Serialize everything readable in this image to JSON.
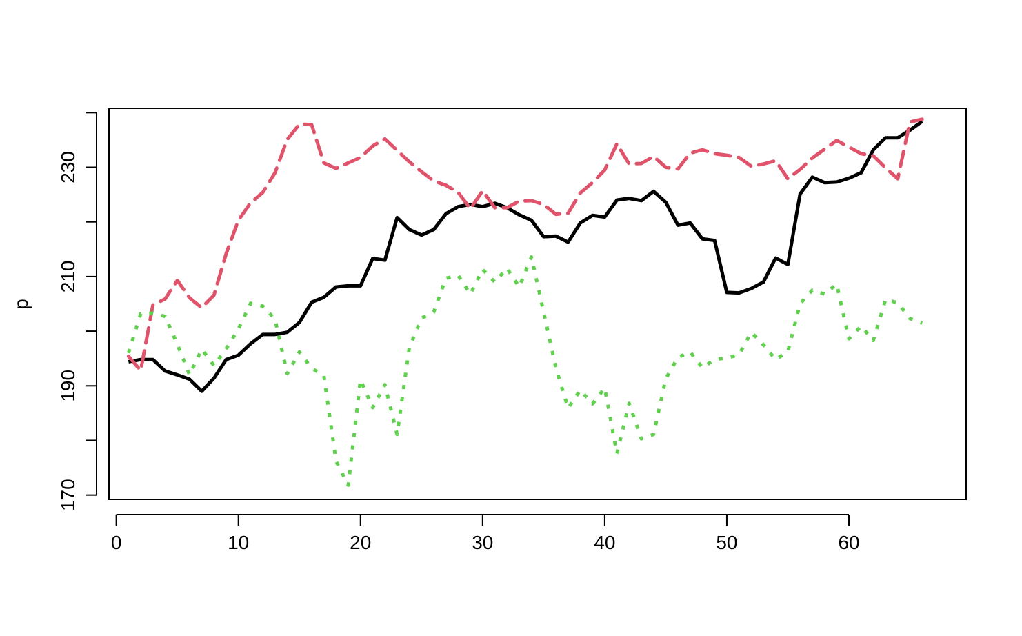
{
  "chart_data": {
    "type": "line",
    "title": "",
    "xlabel": "",
    "ylabel": "p",
    "xlim": [
      -0.6,
      69.6
    ],
    "ylim": [
      169.2,
      240.8
    ],
    "x_ticks": [
      0,
      10,
      20,
      30,
      40,
      50,
      60
    ],
    "y_ticks": [
      170,
      180,
      190,
      200,
      210,
      220,
      230,
      240
    ],
    "y_tick_labels": [
      "170",
      "",
      "190",
      "",
      "210",
      "",
      "230",
      ""
    ],
    "grid": false,
    "legend": "none",
    "x": [
      1,
      2,
      3,
      4,
      5,
      6,
      7,
      8,
      9,
      10,
      11,
      12,
      13,
      14,
      15,
      16,
      17,
      18,
      19,
      20,
      21,
      22,
      23,
      24,
      25,
      26,
      27,
      28,
      29,
      30,
      31,
      32,
      33,
      34,
      35,
      36,
      37,
      38,
      39,
      40,
      41,
      42,
      43,
      44,
      45,
      46,
      47,
      48,
      49,
      50,
      51,
      52,
      53,
      54,
      55,
      56,
      57,
      58,
      59,
      60,
      61,
      62,
      63,
      64,
      65,
      66
    ],
    "series": [
      {
        "color": "#000000",
        "linestyle": "solid",
        "values": [
          194.4,
          194.8,
          194.8,
          192.7,
          192.0,
          191.2,
          189.0,
          191.4,
          194.8,
          195.6,
          197.7,
          199.4,
          199.4,
          199.8,
          201.6,
          205.3,
          206.2,
          208.1,
          208.3,
          208.3,
          213.3,
          213.0,
          220.8,
          218.6,
          217.6,
          218.6,
          221.5,
          222.8,
          223.2,
          222.8,
          223.4,
          222.6,
          221.3,
          220.3,
          217.3,
          217.4,
          216.3,
          219.8,
          221.2,
          220.9,
          224.0,
          224.3,
          223.9,
          225.6,
          223.6,
          219.4,
          219.8,
          216.9,
          216.6,
          207.1,
          207.0,
          207.8,
          209.0,
          213.4,
          212.2,
          225.1,
          228.2,
          227.2,
          227.3,
          228.0,
          229.0,
          233.2,
          235.4,
          235.4,
          236.8,
          238.4
        ]
      },
      {
        "color": "#DF536B",
        "linestyle": "dashed",
        "values": [
          195.4,
          192.8,
          204.8,
          205.9,
          209.3,
          206.1,
          204.3,
          206.6,
          214.2,
          220.3,
          223.5,
          225.4,
          229.0,
          235.1,
          237.9,
          237.8,
          230.8,
          229.8,
          230.8,
          231.8,
          233.9,
          235.2,
          233.1,
          231.0,
          229.2,
          227.5,
          226.7,
          225.4,
          222.4,
          225.7,
          222.6,
          222.6,
          223.8,
          223.9,
          223.2,
          221.4,
          221.6,
          225.3,
          227.2,
          229.5,
          234.3,
          230.6,
          230.7,
          232.0,
          230.0,
          229.7,
          232.6,
          233.2,
          232.5,
          232.2,
          231.8,
          230.2,
          230.6,
          231.2,
          227.9,
          229.6,
          231.7,
          233.3,
          234.9,
          233.7,
          232.5,
          232.1,
          229.9,
          227.9,
          238.3,
          238.8
        ]
      },
      {
        "color": "#61D04F",
        "linestyle": "dotted",
        "values": [
          196.0,
          203.2,
          203.3,
          202.7,
          197.6,
          192.0,
          196.7,
          193.7,
          196.8,
          200.4,
          205.1,
          204.6,
          202.2,
          192.2,
          196.2,
          193.2,
          191.9,
          176.2,
          171.8,
          191.1,
          186.0,
          190.2,
          181.1,
          197.0,
          202.4,
          203.5,
          209.7,
          210.2,
          206.8,
          211.3,
          209.0,
          211.5,
          208.1,
          213.6,
          203.5,
          193.3,
          185.9,
          189.2,
          186.7,
          189.6,
          177.6,
          186.8,
          180.3,
          181.1,
          191.3,
          195.2,
          196.2,
          193.3,
          194.8,
          195.1,
          195.7,
          199.8,
          197.5,
          194.8,
          196.3,
          205.0,
          207.5,
          206.8,
          208.6,
          198.6,
          200.9,
          198.3,
          205.8,
          205.2,
          202.3,
          201.5
        ]
      }
    ]
  }
}
